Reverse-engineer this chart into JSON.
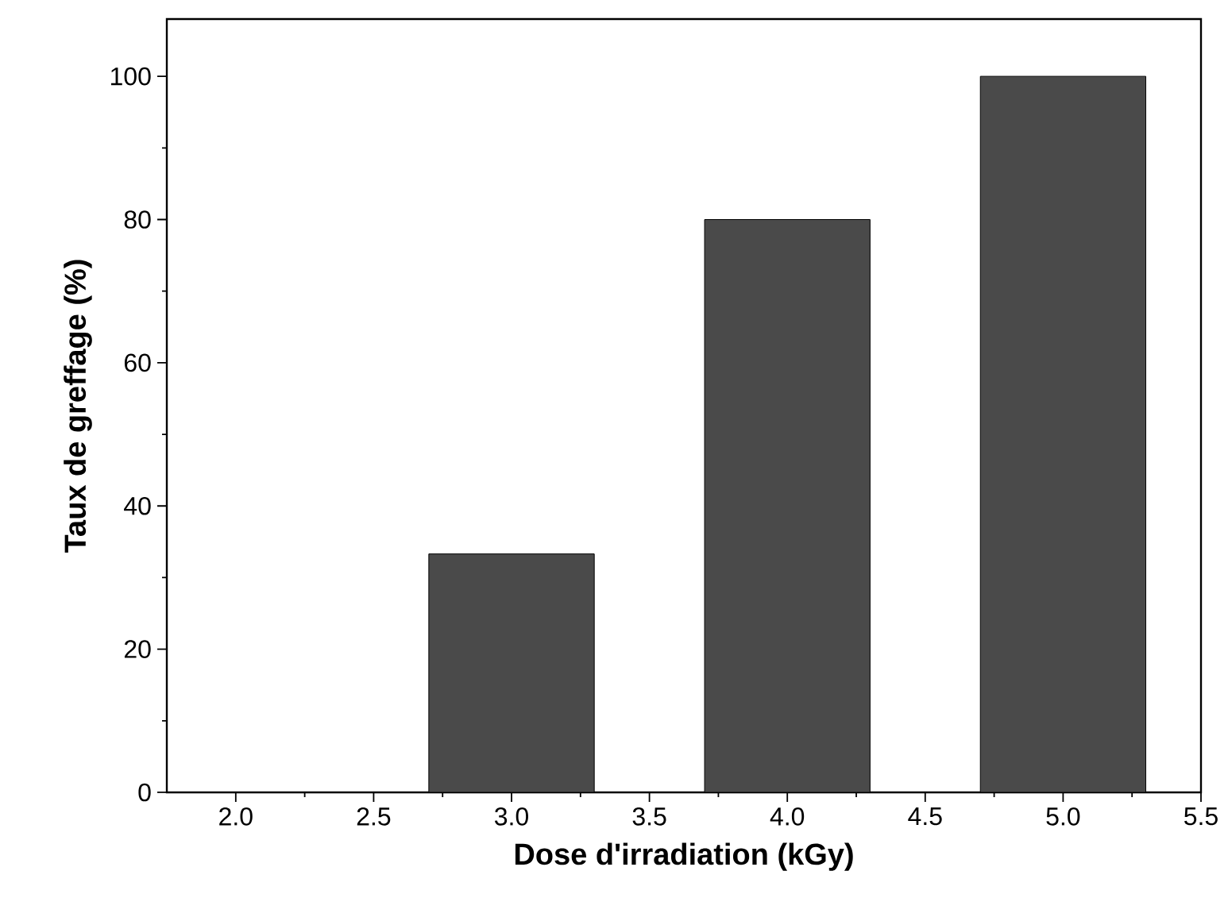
{
  "chart_data": {
    "type": "bar",
    "xlabel": "Dose d'irradiation (kGy)",
    "ylabel": "Taux de greffage (%)",
    "x": [
      3,
      4,
      5
    ],
    "values": [
      33.3,
      80,
      100
    ],
    "color": "#4a4a4a",
    "xlim": [
      1.75,
      5.5
    ],
    "ylim": [
      0,
      108
    ],
    "xticks": [
      {
        "value": 2,
        "label": "2.0"
      },
      {
        "value": 2.5,
        "label": "2.5"
      },
      {
        "value": 3,
        "label": "3.0"
      },
      {
        "value": 3.5,
        "label": "3.5"
      },
      {
        "value": 4,
        "label": "4.0"
      },
      {
        "value": 4.5,
        "label": "4.5"
      },
      {
        "value": 5,
        "label": "5.0"
      },
      {
        "value": 5.5,
        "label": "5.5"
      }
    ],
    "yticks": [
      0,
      20,
      40,
      60,
      80,
      100
    ]
  }
}
